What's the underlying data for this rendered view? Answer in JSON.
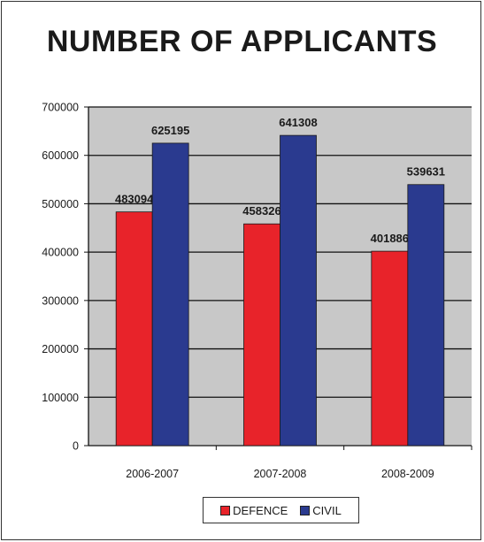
{
  "chart_data": {
    "type": "bar",
    "title": "NUMBER OF APPLICANTS",
    "categories": [
      "2006-2007",
      "2007-2008",
      "2008-2009"
    ],
    "series": [
      {
        "name": "DEFENCE",
        "values": [
          483094,
          458326,
          401886
        ],
        "color": "#e8232a"
      },
      {
        "name": "CIVIL",
        "values": [
          625195,
          641308,
          539631
        ],
        "color": "#2a3a8f"
      }
    ],
    "ylim": [
      0,
      700000
    ],
    "yticks": [
      "0",
      "100000",
      "200000",
      "300000",
      "400000",
      "500000",
      "600000",
      "700000"
    ],
    "grid": true,
    "plot_background": "#c8c8c8",
    "legend_position": "bottom"
  }
}
